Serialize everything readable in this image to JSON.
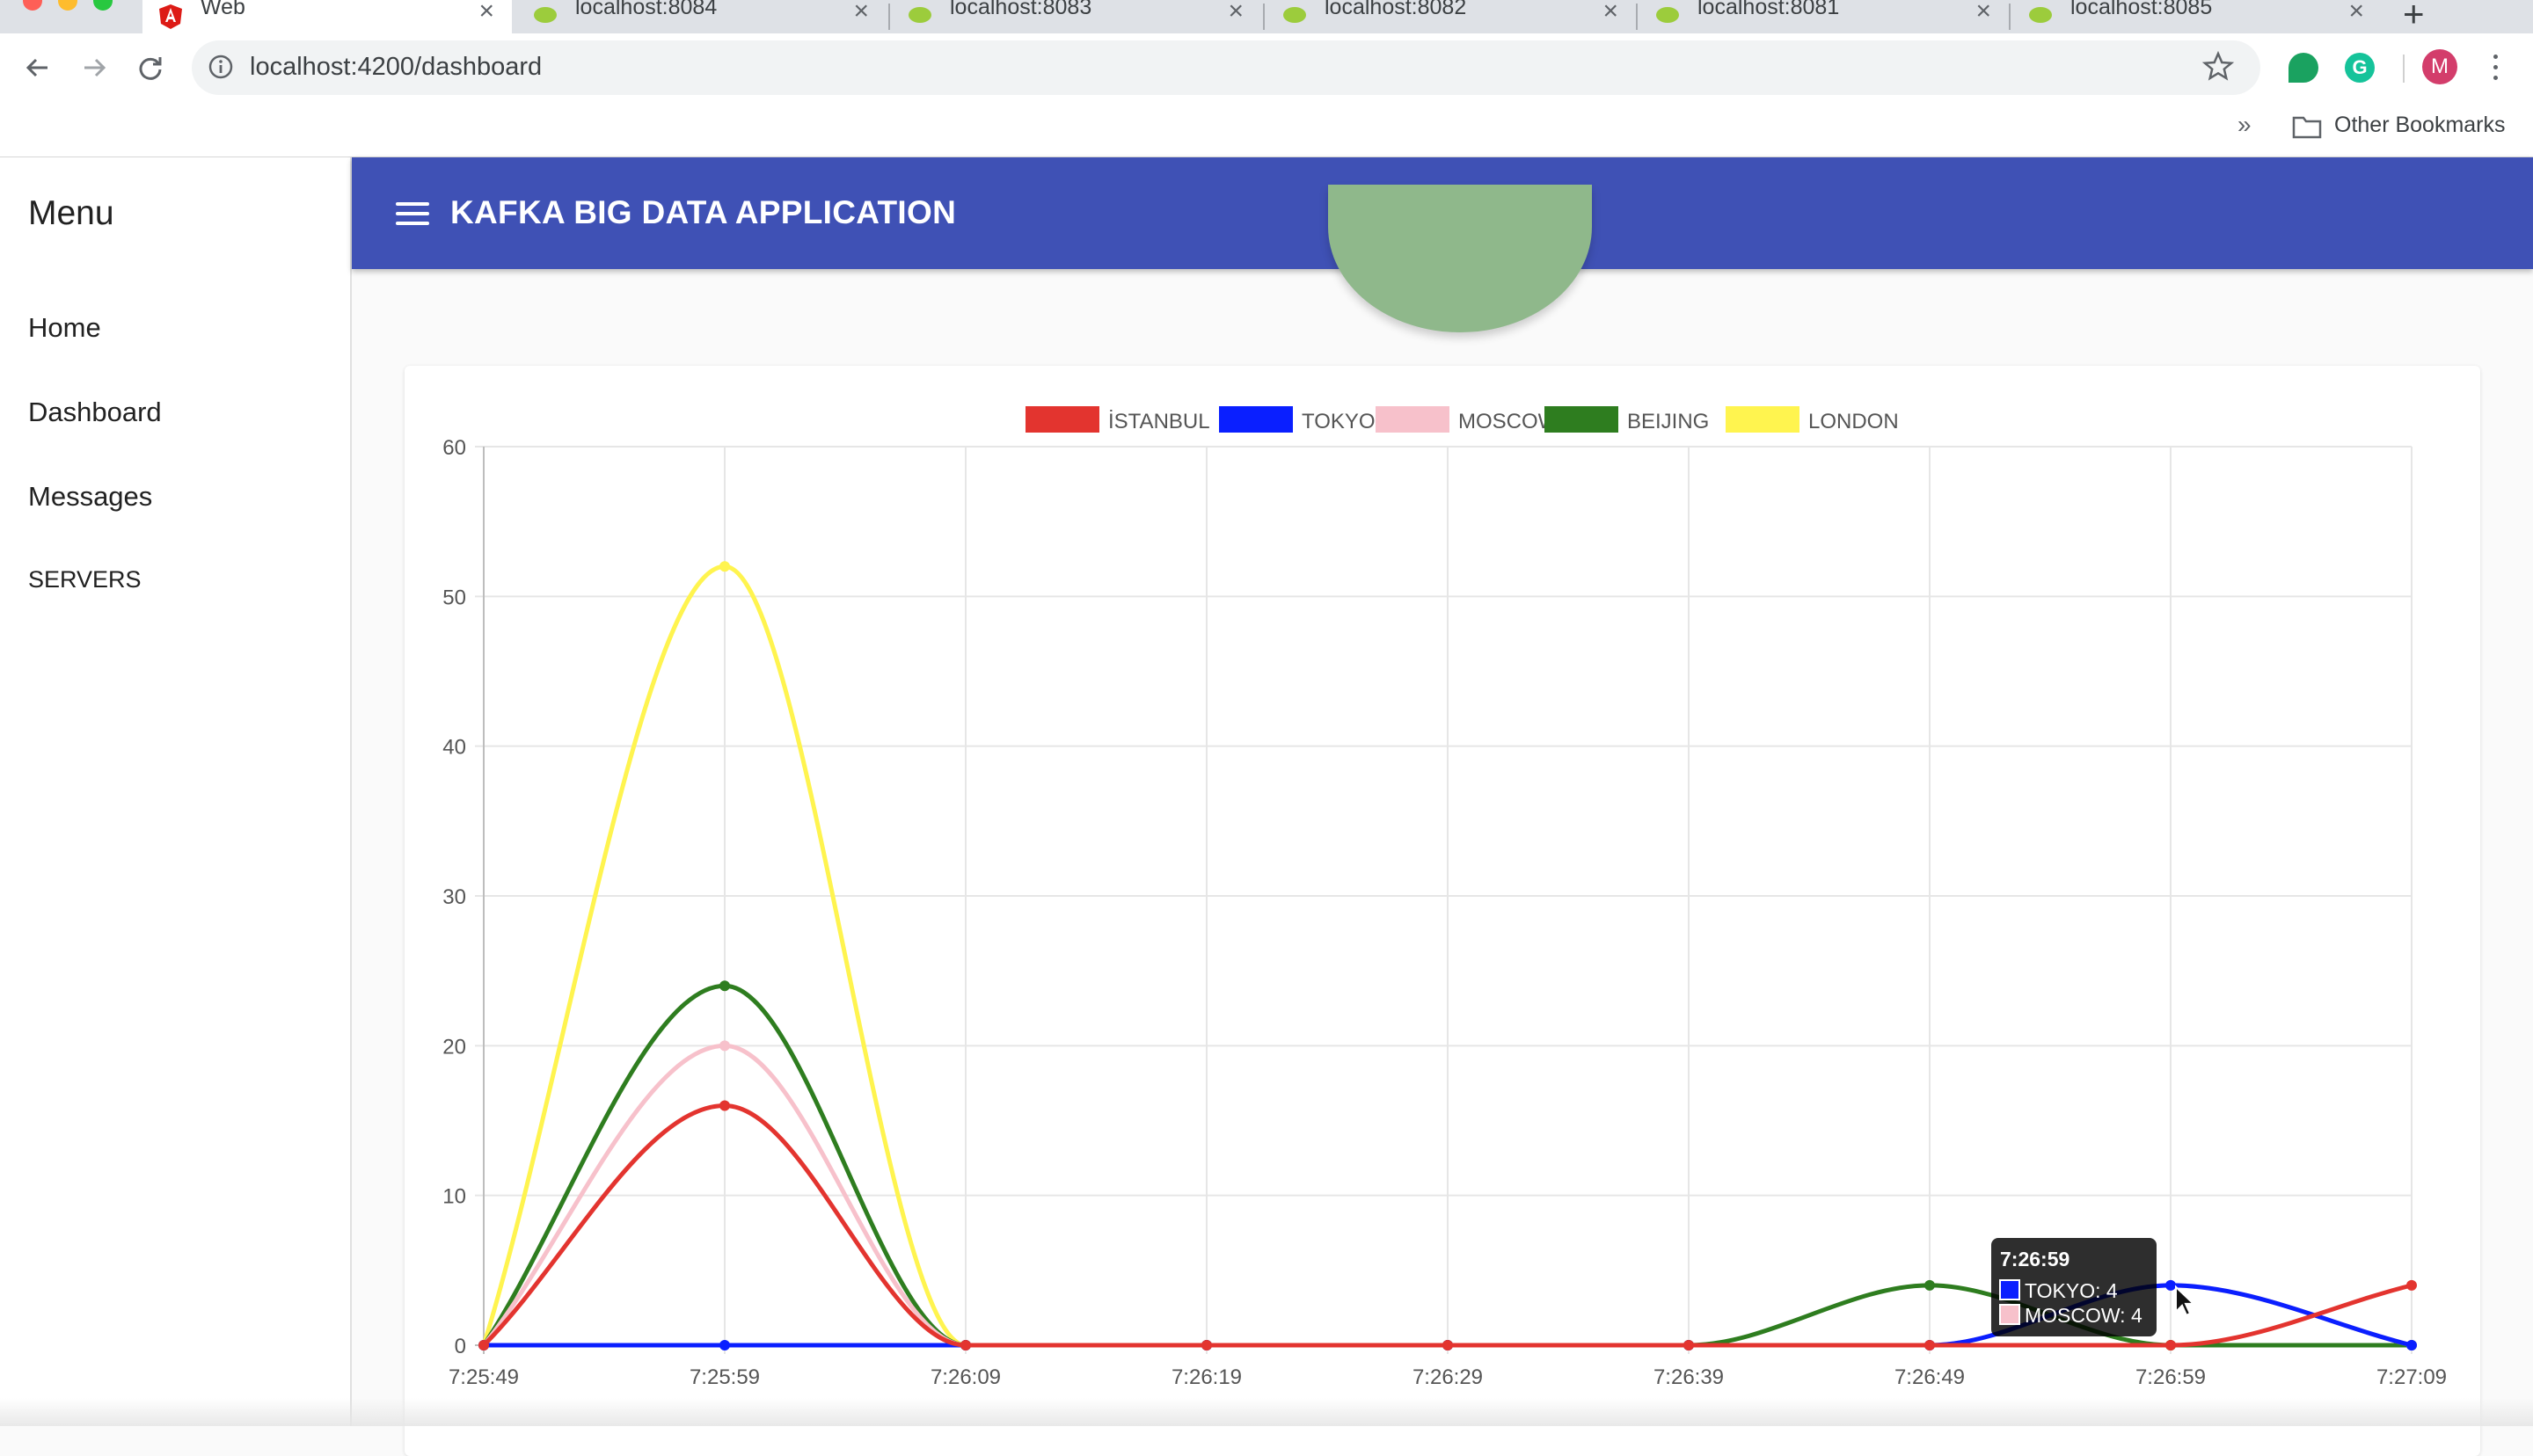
{
  "browser": {
    "tabs": [
      {
        "title": "Web",
        "active": true,
        "icon": "angular-icon"
      },
      {
        "title": "localhost:8084",
        "active": false,
        "icon": "spring-leaf-icon"
      },
      {
        "title": "localhost:8083",
        "active": false,
        "icon": "spring-leaf-icon"
      },
      {
        "title": "localhost:8082",
        "active": false,
        "icon": "spring-leaf-icon"
      },
      {
        "title": "localhost:8081",
        "active": false,
        "icon": "spring-leaf-icon"
      },
      {
        "title": "localhost:8085",
        "active": false,
        "icon": "spring-leaf-icon"
      }
    ],
    "url": "localhost:4200/dashboard",
    "profile_initial": "M",
    "bookmarks_chevron": "»",
    "other_bookmarks": "Other Bookmarks"
  },
  "sidebar": {
    "title": "Menu",
    "items": [
      {
        "label": "Home"
      },
      {
        "label": "Dashboard"
      },
      {
        "label": "Messages"
      },
      {
        "label": "SERVERS"
      }
    ]
  },
  "appbar": {
    "title": "KAFKA BIG DATA APPLICATION"
  },
  "colors": {
    "appbar": "#3f51b5",
    "istanbul": "#e3342f",
    "tokyo": "#0a1fff",
    "moscow": "#f7c1cb",
    "beijing": "#2e7d1f",
    "london": "#fff44f"
  },
  "chart_data": {
    "type": "line",
    "title": "",
    "xlabel": "",
    "ylabel": "",
    "ylim": [
      0,
      60
    ],
    "yticks": [
      0,
      10,
      20,
      30,
      40,
      50,
      60
    ],
    "grid": true,
    "legend_position": "top",
    "x": [
      "7:25:49",
      "7:25:59",
      "7:26:09",
      "7:26:19",
      "7:26:29",
      "7:26:39",
      "7:26:49",
      "7:26:59",
      "7:27:09"
    ],
    "series": [
      {
        "name": "İSTANBUL",
        "color": "#e3342f",
        "values": [
          0,
          16,
          0,
          0,
          0,
          0,
          0,
          0,
          4
        ]
      },
      {
        "name": "TOKYO",
        "color": "#0a1fff",
        "values": [
          0,
          0,
          0,
          0,
          0,
          0,
          0,
          4,
          0
        ]
      },
      {
        "name": "MOSCOW",
        "color": "#f7c1cb",
        "values": [
          0,
          20,
          0,
          0,
          0,
          0,
          0,
          4,
          0
        ]
      },
      {
        "name": "BEIJING",
        "color": "#2e7d1f",
        "values": [
          0,
          24,
          0,
          0,
          0,
          0,
          4,
          0,
          0
        ]
      },
      {
        "name": "LONDON",
        "color": "#fff44f",
        "values": [
          0,
          52,
          0,
          0,
          0,
          0,
          0,
          0,
          0
        ]
      }
    ],
    "tooltip": {
      "x": "7:26:59",
      "entries": [
        {
          "label": "TOKYO: 4",
          "color": "#0a1fff"
        },
        {
          "label": "MOSCOW: 4",
          "color": "#f7c1cb"
        }
      ]
    }
  }
}
